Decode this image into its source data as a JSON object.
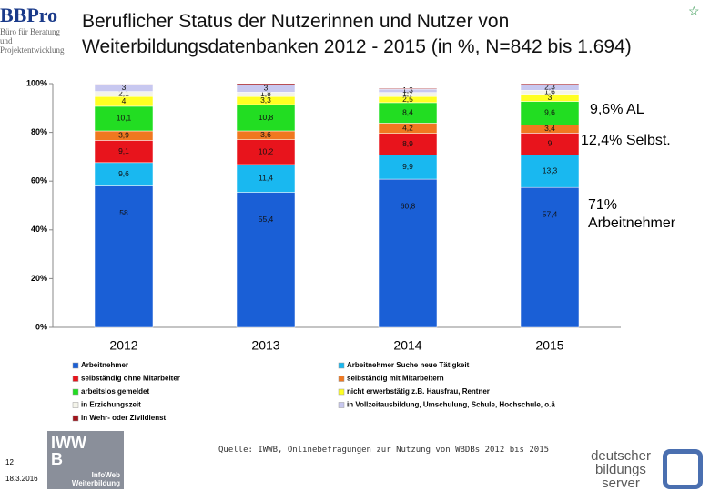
{
  "chart_data": {
    "type": "stacked_bar",
    "title": "Beruflicher Status der Nutzerinnen und Nutzer von Weiterbildungsdatenbanken 2012 - 2015 (in %, N=842 bis 1.694)",
    "categories": [
      "2012",
      "2013",
      "2014",
      "2015"
    ],
    "ylim": [
      0,
      100
    ],
    "yticks": [
      {
        "value": 0,
        "label": "0%"
      },
      {
        "value": 20,
        "label": "20%"
      },
      {
        "value": 40,
        "label": "40%"
      },
      {
        "value": 60,
        "label": "60%"
      },
      {
        "value": 80,
        "label": "80%"
      },
      {
        "value": 100,
        "label": "100%"
      }
    ],
    "series": [
      {
        "name": "Arbeitnehmer",
        "color": "#1a5fd6",
        "values": [
          58,
          55.4,
          60.8,
          57.4
        ],
        "value_labels": [
          "58",
          "55,4",
          "60,8",
          "57,4"
        ]
      },
      {
        "name": "Arbeitnehmer Suche neue Tätigkeit",
        "color": "#19b8f0",
        "values": [
          9.6,
          11.4,
          9.9,
          13.3
        ],
        "value_labels": [
          "9,6",
          "11,4",
          "9,9",
          "13,3"
        ]
      },
      {
        "name": "selbständig ohne Mitarbeiter",
        "color": "#e8141c",
        "values": [
          9.1,
          10.2,
          8.9,
          9
        ],
        "value_labels": [
          "9,1",
          "10,2",
          "8,9",
          "9"
        ]
      },
      {
        "name": "selbständig mit Mitarbeitern",
        "color": "#f07820",
        "values": [
          3.9,
          3.6,
          4.2,
          3.4
        ],
        "value_labels": [
          "3,9",
          "3,6",
          "4,2",
          "3,4"
        ]
      },
      {
        "name": "arbeitslos gemeldet",
        "color": "#22dd22",
        "values": [
          10.1,
          10.8,
          8.4,
          9.6
        ],
        "value_labels": [
          "10,1",
          "10,8",
          "8,4",
          "9,6"
        ]
      },
      {
        "name": "nicht erwerbstätig z.B. Hausfrau, Rentner",
        "color": "#ffff22",
        "values": [
          4,
          3.3,
          2.5,
          3
        ],
        "value_labels": [
          "4",
          "3,3",
          "2,5",
          "3"
        ]
      },
      {
        "name": "in Erziehungszeit",
        "color": "#f4f4ea",
        "values": [
          2.1,
          1.8,
          1.7,
          1.6
        ],
        "value_labels": [
          "2,1",
          "1,8",
          "1,7",
          "1,6"
        ]
      },
      {
        "name": "in Vollzeitausbildung, Umschulung, Schule, Hochschule, o.ä",
        "color": "#c8c8f0",
        "values": [
          3,
          3,
          1.3,
          2.3
        ],
        "value_labels": [
          "3",
          "3",
          "1,3",
          "2,3"
        ]
      },
      {
        "name": "in Wehr- oder Zivildienst",
        "color": "#a0141c",
        "values": [
          0.2,
          0.5,
          0.3,
          0.4
        ]
      }
    ],
    "annotations": [
      "9,6% AL",
      "12,4% Selbst.",
      "71% Arbeitnehmer"
    ]
  },
  "slide": {
    "logo": "BBPro",
    "logo_sub": "Büro für Beratung und Projektentwicklung",
    "source": "Quelle: IWWB, Onlinebefragungen zur Nutzung von WBDBs 2012 bis 2015",
    "page": "12",
    "date": "18.3.2016",
    "iwwb": "IWWB",
    "iwwb_sub": "InfoWeb Weiterbildung",
    "dbs": "deutscher bildungs server"
  }
}
